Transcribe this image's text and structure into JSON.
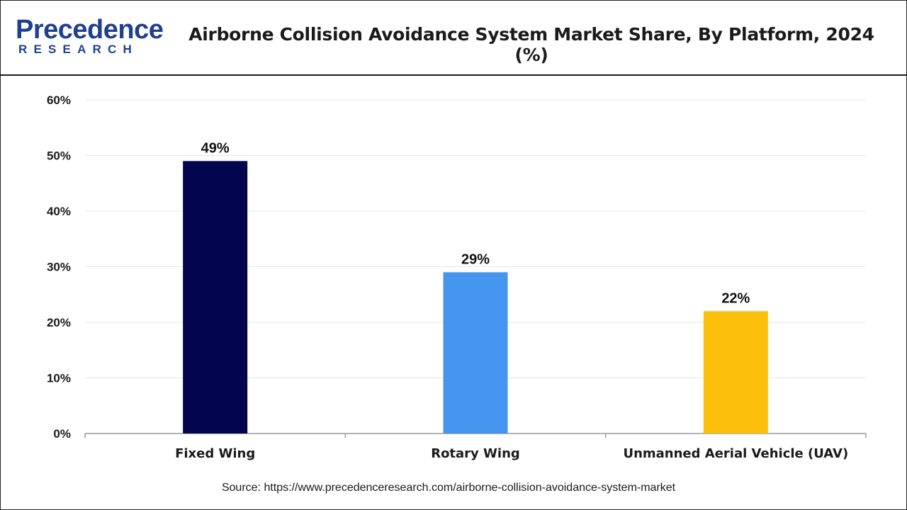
{
  "header": {
    "logo_top": "Precedence",
    "logo_bottom": "RESEARCH",
    "title": "Airborne Collision Avoidance System Market Share, By Platform, 2024 (%)"
  },
  "footer": {
    "source": "Source: https://www.precedenceresearch.com/airborne-collision-avoidance-system-market"
  },
  "colors": {
    "brand": "#1f3f8f",
    "grid": "#e6e6e6",
    "axis": "#9a9a9a"
  },
  "chart_data": {
    "type": "bar",
    "title": "Airborne Collision Avoidance System Market Share, By Platform, 2024 (%)",
    "xlabel": "",
    "ylabel": "",
    "categories": [
      "Fixed Wing",
      "Rotary Wing",
      "Unmanned Aerial Vehicle (UAV)"
    ],
    "values": [
      49,
      29,
      22
    ],
    "value_labels": [
      "49%",
      "29%",
      "22%"
    ],
    "bar_colors": [
      "#03054f",
      "#4595ee",
      "#fcbf0c"
    ],
    "ylim": [
      0,
      60
    ],
    "yticks": [
      0,
      10,
      20,
      30,
      40,
      50,
      60
    ],
    "ytick_labels": [
      "0%",
      "10%",
      "20%",
      "30%",
      "40%",
      "50%",
      "60%"
    ],
    "grid": true,
    "legend": "none"
  }
}
